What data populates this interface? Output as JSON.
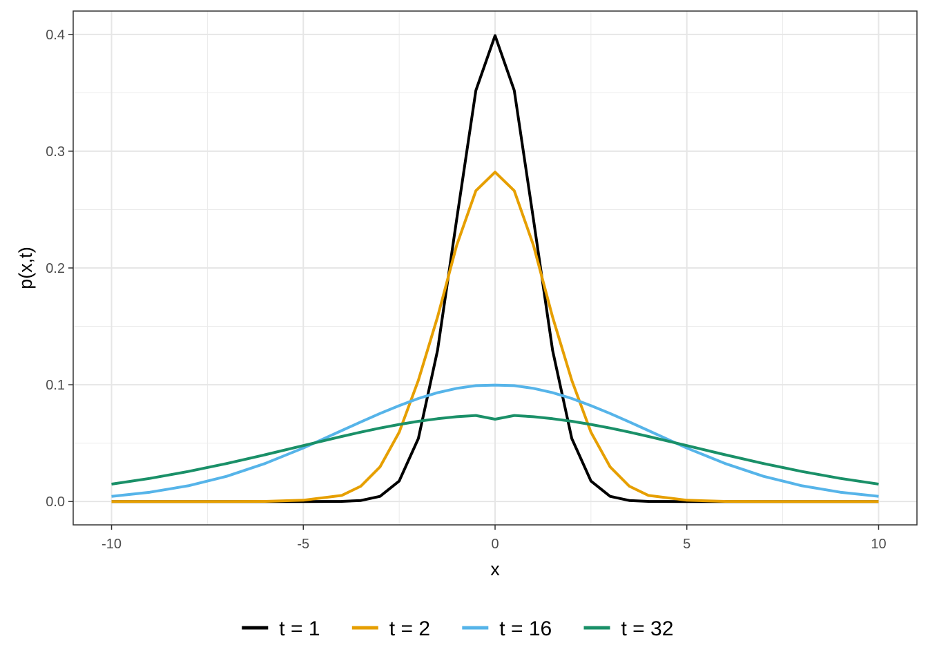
{
  "chart_data": {
    "type": "line",
    "title": "",
    "xlabel": "x",
    "ylabel": "p(x,t)",
    "xlim": [
      -11,
      11
    ],
    "ylim": [
      -0.02,
      0.42
    ],
    "x_ticks": [
      -10,
      -5,
      0,
      5,
      10
    ],
    "x_tick_labels": [
      "-10",
      "-5",
      "0",
      "5",
      "10"
    ],
    "y_ticks": [
      0,
      0.1,
      0.2,
      0.3,
      0.4
    ],
    "y_tick_labels": [
      "0.0",
      "0.1",
      "0.2",
      "0.3",
      "0.4"
    ],
    "grid": true,
    "legend_position": "bottom",
    "x": [
      -10,
      -9,
      -8,
      -7,
      -6,
      -5,
      -4,
      -3.5,
      -3,
      -2.5,
      -2,
      -1.5,
      -1,
      -0.5,
      0,
      0.5,
      1,
      1.5,
      2,
      2.5,
      3,
      3.5,
      4,
      5,
      6,
      7,
      8,
      9,
      10
    ],
    "series": [
      {
        "name": "t = 1",
        "color": "#000000",
        "values": [
          0,
          0,
          0,
          0,
          0,
          1.5e-06,
          0.00013,
          0.0009,
          0.0044,
          0.0175,
          0.054,
          0.1295,
          0.242,
          0.352,
          0.399,
          0.352,
          0.242,
          0.1295,
          0.054,
          0.0175,
          0.0044,
          0.0009,
          0.00013,
          1.5e-06,
          0,
          0,
          0,
          0,
          0
        ]
      },
      {
        "name": "t = 2",
        "color": "#E69F00",
        "values": [
          0,
          0,
          0,
          0,
          0.0001,
          0.0011,
          0.0052,
          0.0131,
          0.0297,
          0.0593,
          0.1038,
          0.158,
          0.2196,
          0.2661,
          0.2821,
          0.2661,
          0.2196,
          0.158,
          0.1038,
          0.0593,
          0.0297,
          0.0131,
          0.0052,
          0.0011,
          0.0001,
          0,
          0,
          0,
          0
        ]
      },
      {
        "name": "t = 16",
        "color": "#56B4E9",
        "values": [
          0.0044,
          0.008,
          0.0135,
          0.0216,
          0.0325,
          0.0458,
          0.0607,
          0.0682,
          0.0754,
          0.0821,
          0.0882,
          0.0932,
          0.0969,
          0.0992,
          0.0997,
          0.0992,
          0.0969,
          0.0932,
          0.0882,
          0.0821,
          0.0754,
          0.0682,
          0.0607,
          0.0458,
          0.0325,
          0.0216,
          0.0135,
          0.008,
          0.0044
        ]
      },
      {
        "name": "t = 32",
        "color": "#1A9068",
        "values": [
          0.0149,
          0.0198,
          0.0257,
          0.0325,
          0.04,
          0.0479,
          0.0557,
          0.0594,
          0.0629,
          0.066,
          0.0687,
          0.0709,
          0.0726,
          0.0737,
          0.0705,
          0.0737,
          0.0726,
          0.0709,
          0.0687,
          0.066,
          0.0629,
          0.0594,
          0.0557,
          0.0479,
          0.04,
          0.0325,
          0.0257,
          0.0198,
          0.0149
        ]
      }
    ]
  }
}
